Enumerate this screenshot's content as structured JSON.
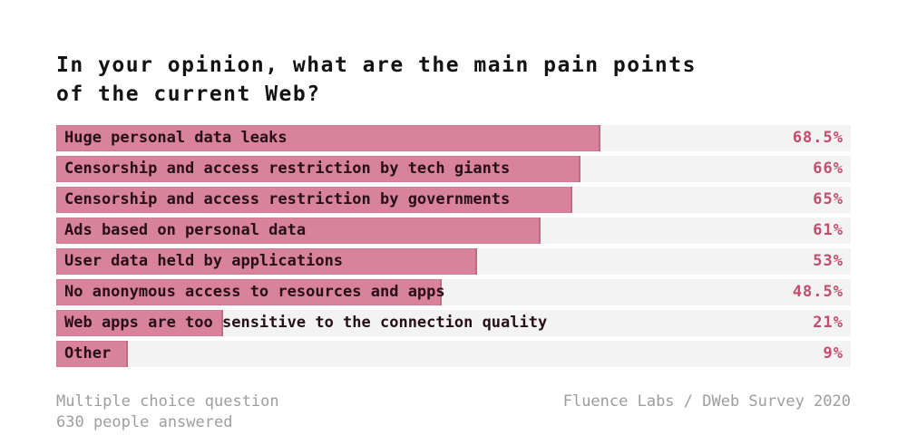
{
  "title": {
    "lines": [
      "In your opinion, what are the main pain points",
      "of the current Web?"
    ]
  },
  "chart_data": {
    "type": "bar",
    "orientation": "horizontal",
    "title": "In your opinion, what are the main pain points of the current Web?",
    "categories": [
      "Huge personal data leaks",
      "Censorship and access restriction by tech giants",
      "Censorship and access restriction by governments",
      "Ads based on personal data",
      "User data held by applications",
      "No anonymous access to resources and apps",
      "Web apps are too sensitive to the connection quality",
      "Other"
    ],
    "values": [
      68.5,
      66,
      65,
      61,
      53,
      48.5,
      21,
      9
    ],
    "value_labels": [
      "68.5%",
      "66%",
      "65%",
      "61%",
      "53%",
      "48.5%",
      "21%",
      "9%"
    ],
    "xlim": [
      0,
      100
    ],
    "grid": false,
    "legend": false,
    "colors": {
      "bar": "#d8829b",
      "track": "#f4f3f4",
      "value_text": "#c44d6c",
      "label_text": "#271019",
      "title_text": "#131313",
      "footer_text": "#9d9d9d"
    }
  },
  "footer": {
    "left_line1": "Multiple choice question",
    "left_line2": "630 people answered",
    "right": "Fluence Labs / DWeb Survey 2020"
  }
}
